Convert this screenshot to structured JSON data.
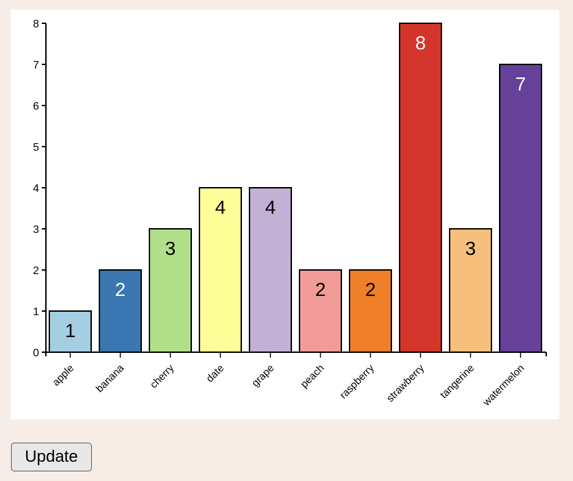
{
  "chart_data": {
    "type": "bar",
    "title": "",
    "xlabel": "",
    "ylabel": "",
    "ylim": [
      0,
      8
    ],
    "yticks": [
      0,
      1,
      2,
      3,
      4,
      5,
      6,
      7,
      8
    ],
    "grid": false,
    "legend": null,
    "categories": [
      "apple",
      "banana",
      "cherry",
      "date",
      "grape",
      "peach",
      "raspberry",
      "strawberry",
      "tangerine",
      "watermelon"
    ],
    "values": [
      1,
      2,
      3,
      4,
      4,
      2,
      2,
      8,
      3,
      7
    ],
    "colors": [
      "#a6cee3",
      "#3a77b0",
      "#b2df8a",
      "#ffff99",
      "#c2b1d4",
      "#f19c99",
      "#f07f2a",
      "#d4352b",
      "#f7bf7c",
      "#65419a"
    ],
    "label_colors": [
      "#000000",
      "#ffffff",
      "#000000",
      "#000000",
      "#000000",
      "#000000",
      "#000000",
      "#ffffff",
      "#000000",
      "#ffffff"
    ],
    "data_labels": [
      "1",
      "2",
      "3",
      "4",
      "4",
      "2",
      "2",
      "8",
      "3",
      "7"
    ],
    "x_tick_rotation": -45
  },
  "controls": {
    "update_label": "Update"
  }
}
